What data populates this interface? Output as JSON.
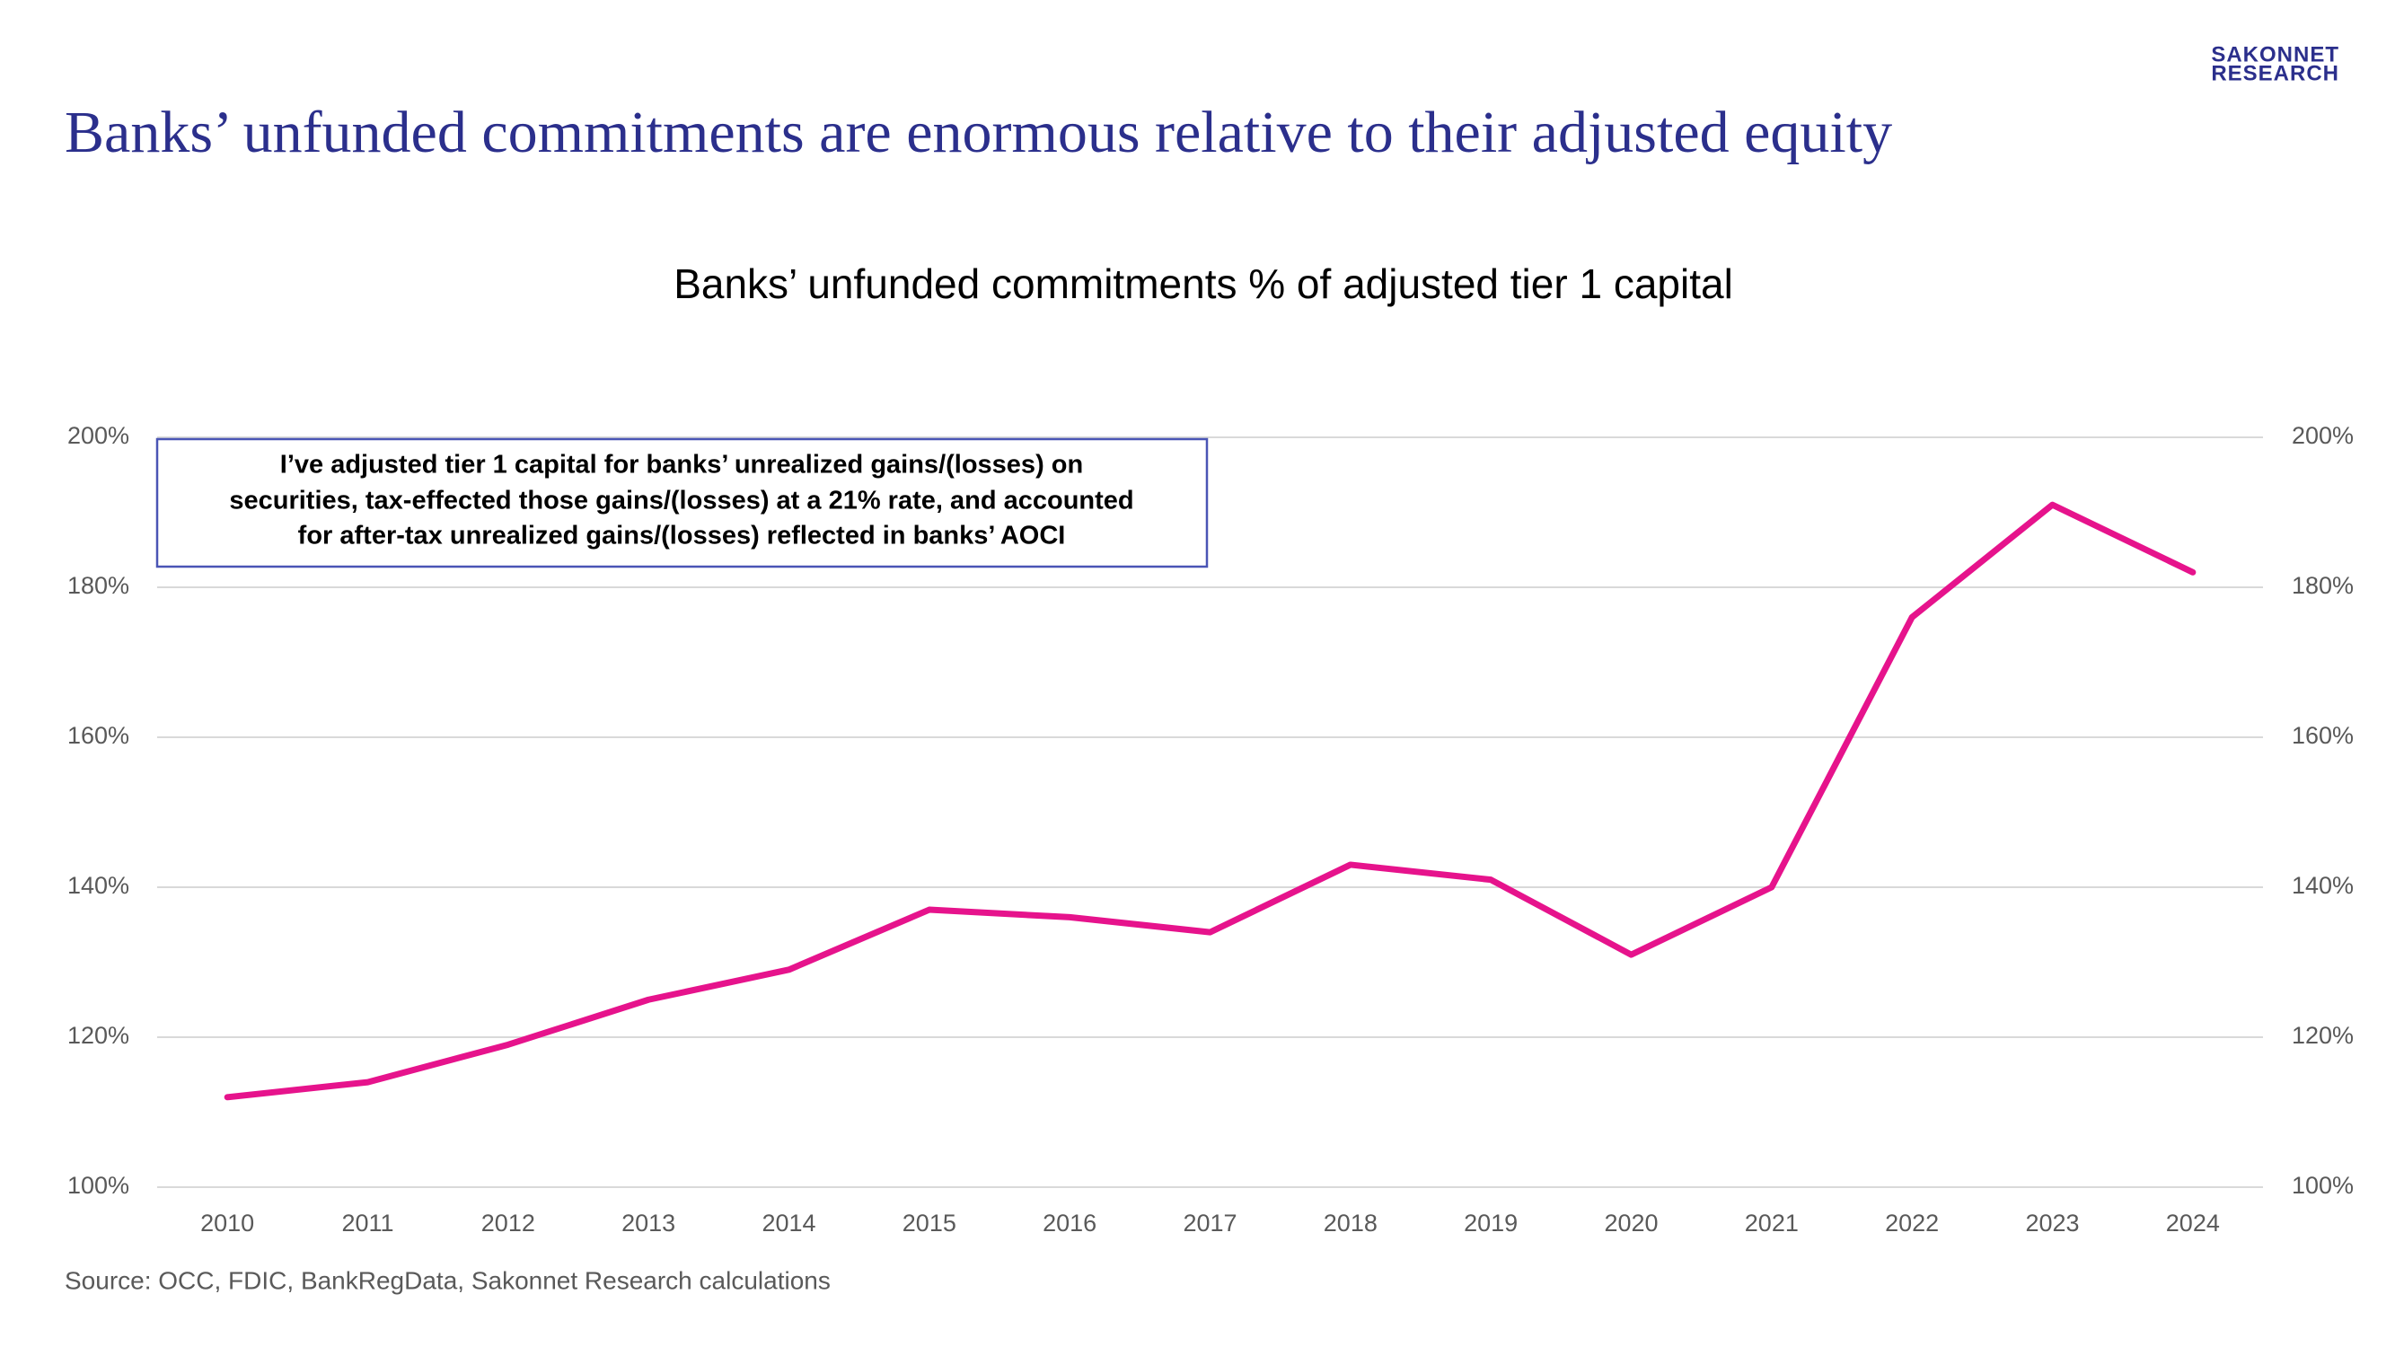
{
  "header": {
    "title": "Banks’ unfunded commitments are enormous relative to their adjusted equity",
    "logo": [
      "SAKONNET",
      "RESEARCH"
    ]
  },
  "chart_data": {
    "type": "line",
    "title": "Banks’ unfunded commitments % of adjusted tier 1 capital",
    "categories": [
      "2010",
      "2011",
      "2012",
      "2013",
      "2014",
      "2015",
      "2016",
      "2017",
      "2018",
      "2019",
      "2020",
      "2021",
      "2022",
      "2023",
      "2024"
    ],
    "values": [
      112,
      114,
      119,
      125,
      129,
      137,
      136,
      134,
      143,
      141,
      131,
      140,
      176,
      191,
      182
    ],
    "color": "#e6138c",
    "ylim": [
      100,
      200
    ],
    "yticks": [
      {
        "value": 100,
        "label": "100%"
      },
      {
        "value": 120,
        "label": "120%"
      },
      {
        "value": 140,
        "label": "140%"
      },
      {
        "value": 160,
        "label": "160%"
      },
      {
        "value": 180,
        "label": "180%"
      },
      {
        "value": 200,
        "label": "200%"
      }
    ],
    "y2lim": [
      100,
      200
    ],
    "y2ticks": [
      {
        "value": 100,
        "label": "100%"
      },
      {
        "value": 120,
        "label": "120%"
      },
      {
        "value": 140,
        "label": "140%"
      },
      {
        "value": 160,
        "label": "160%"
      },
      {
        "value": 180,
        "label": "180%"
      },
      {
        "value": 200,
        "label": "200%"
      }
    ],
    "grid": true,
    "annotation": [
      "I’ve adjusted tier 1 capital for banks’ unrealized gains/(losses) on",
      "securities, tax-effected those gains/(losses) at a 21% rate, and accounted",
      "for after-tax unrealized gains/(losses) reflected in banks’ AOCI"
    ]
  },
  "source": "Source: OCC, FDIC, BankRegData, Sakonnet Research calculations"
}
